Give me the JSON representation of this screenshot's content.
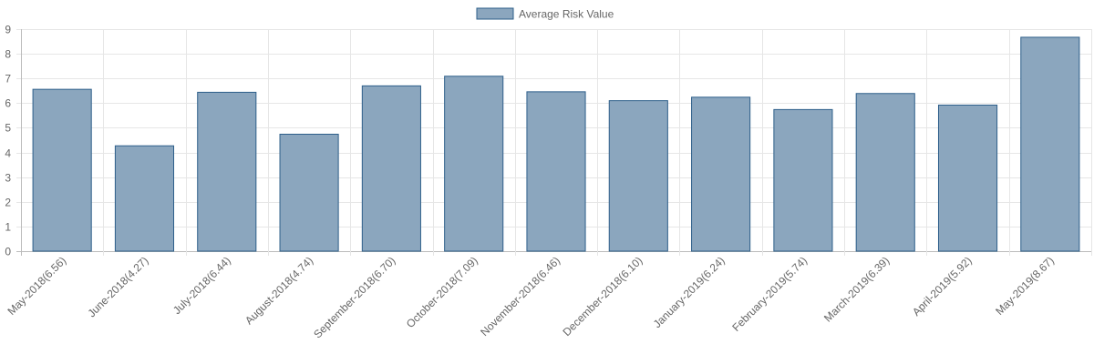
{
  "chart_data": {
    "type": "bar",
    "title": "",
    "xlabel": "",
    "ylabel": "",
    "ylim": [
      0,
      9
    ],
    "yticks": [
      0,
      1,
      2,
      3,
      4,
      5,
      6,
      7,
      8,
      9
    ],
    "grid": true,
    "legend_position": "top-center",
    "categories": [
      "May-2018(6.56)",
      "June-2018(4.27)",
      "July-2018(6.44)",
      "August-2018(4.74)",
      "September-2018(6.70)",
      "October-2018(7.09)",
      "November-2018(6.46)",
      "December-2018(6.10)",
      "January-2019(6.24)",
      "February-2019(5.74)",
      "March-2019(6.39)",
      "April-2019(5.92)",
      "May-2019(8.67)"
    ],
    "series": [
      {
        "name": "Average Risk Value",
        "values": [
          6.56,
          4.27,
          6.44,
          4.74,
          6.7,
          7.09,
          6.46,
          6.1,
          6.24,
          5.74,
          6.39,
          5.92,
          8.67
        ],
        "fill": "#8ba6be",
        "stroke": "#2e5f8a"
      }
    ]
  }
}
